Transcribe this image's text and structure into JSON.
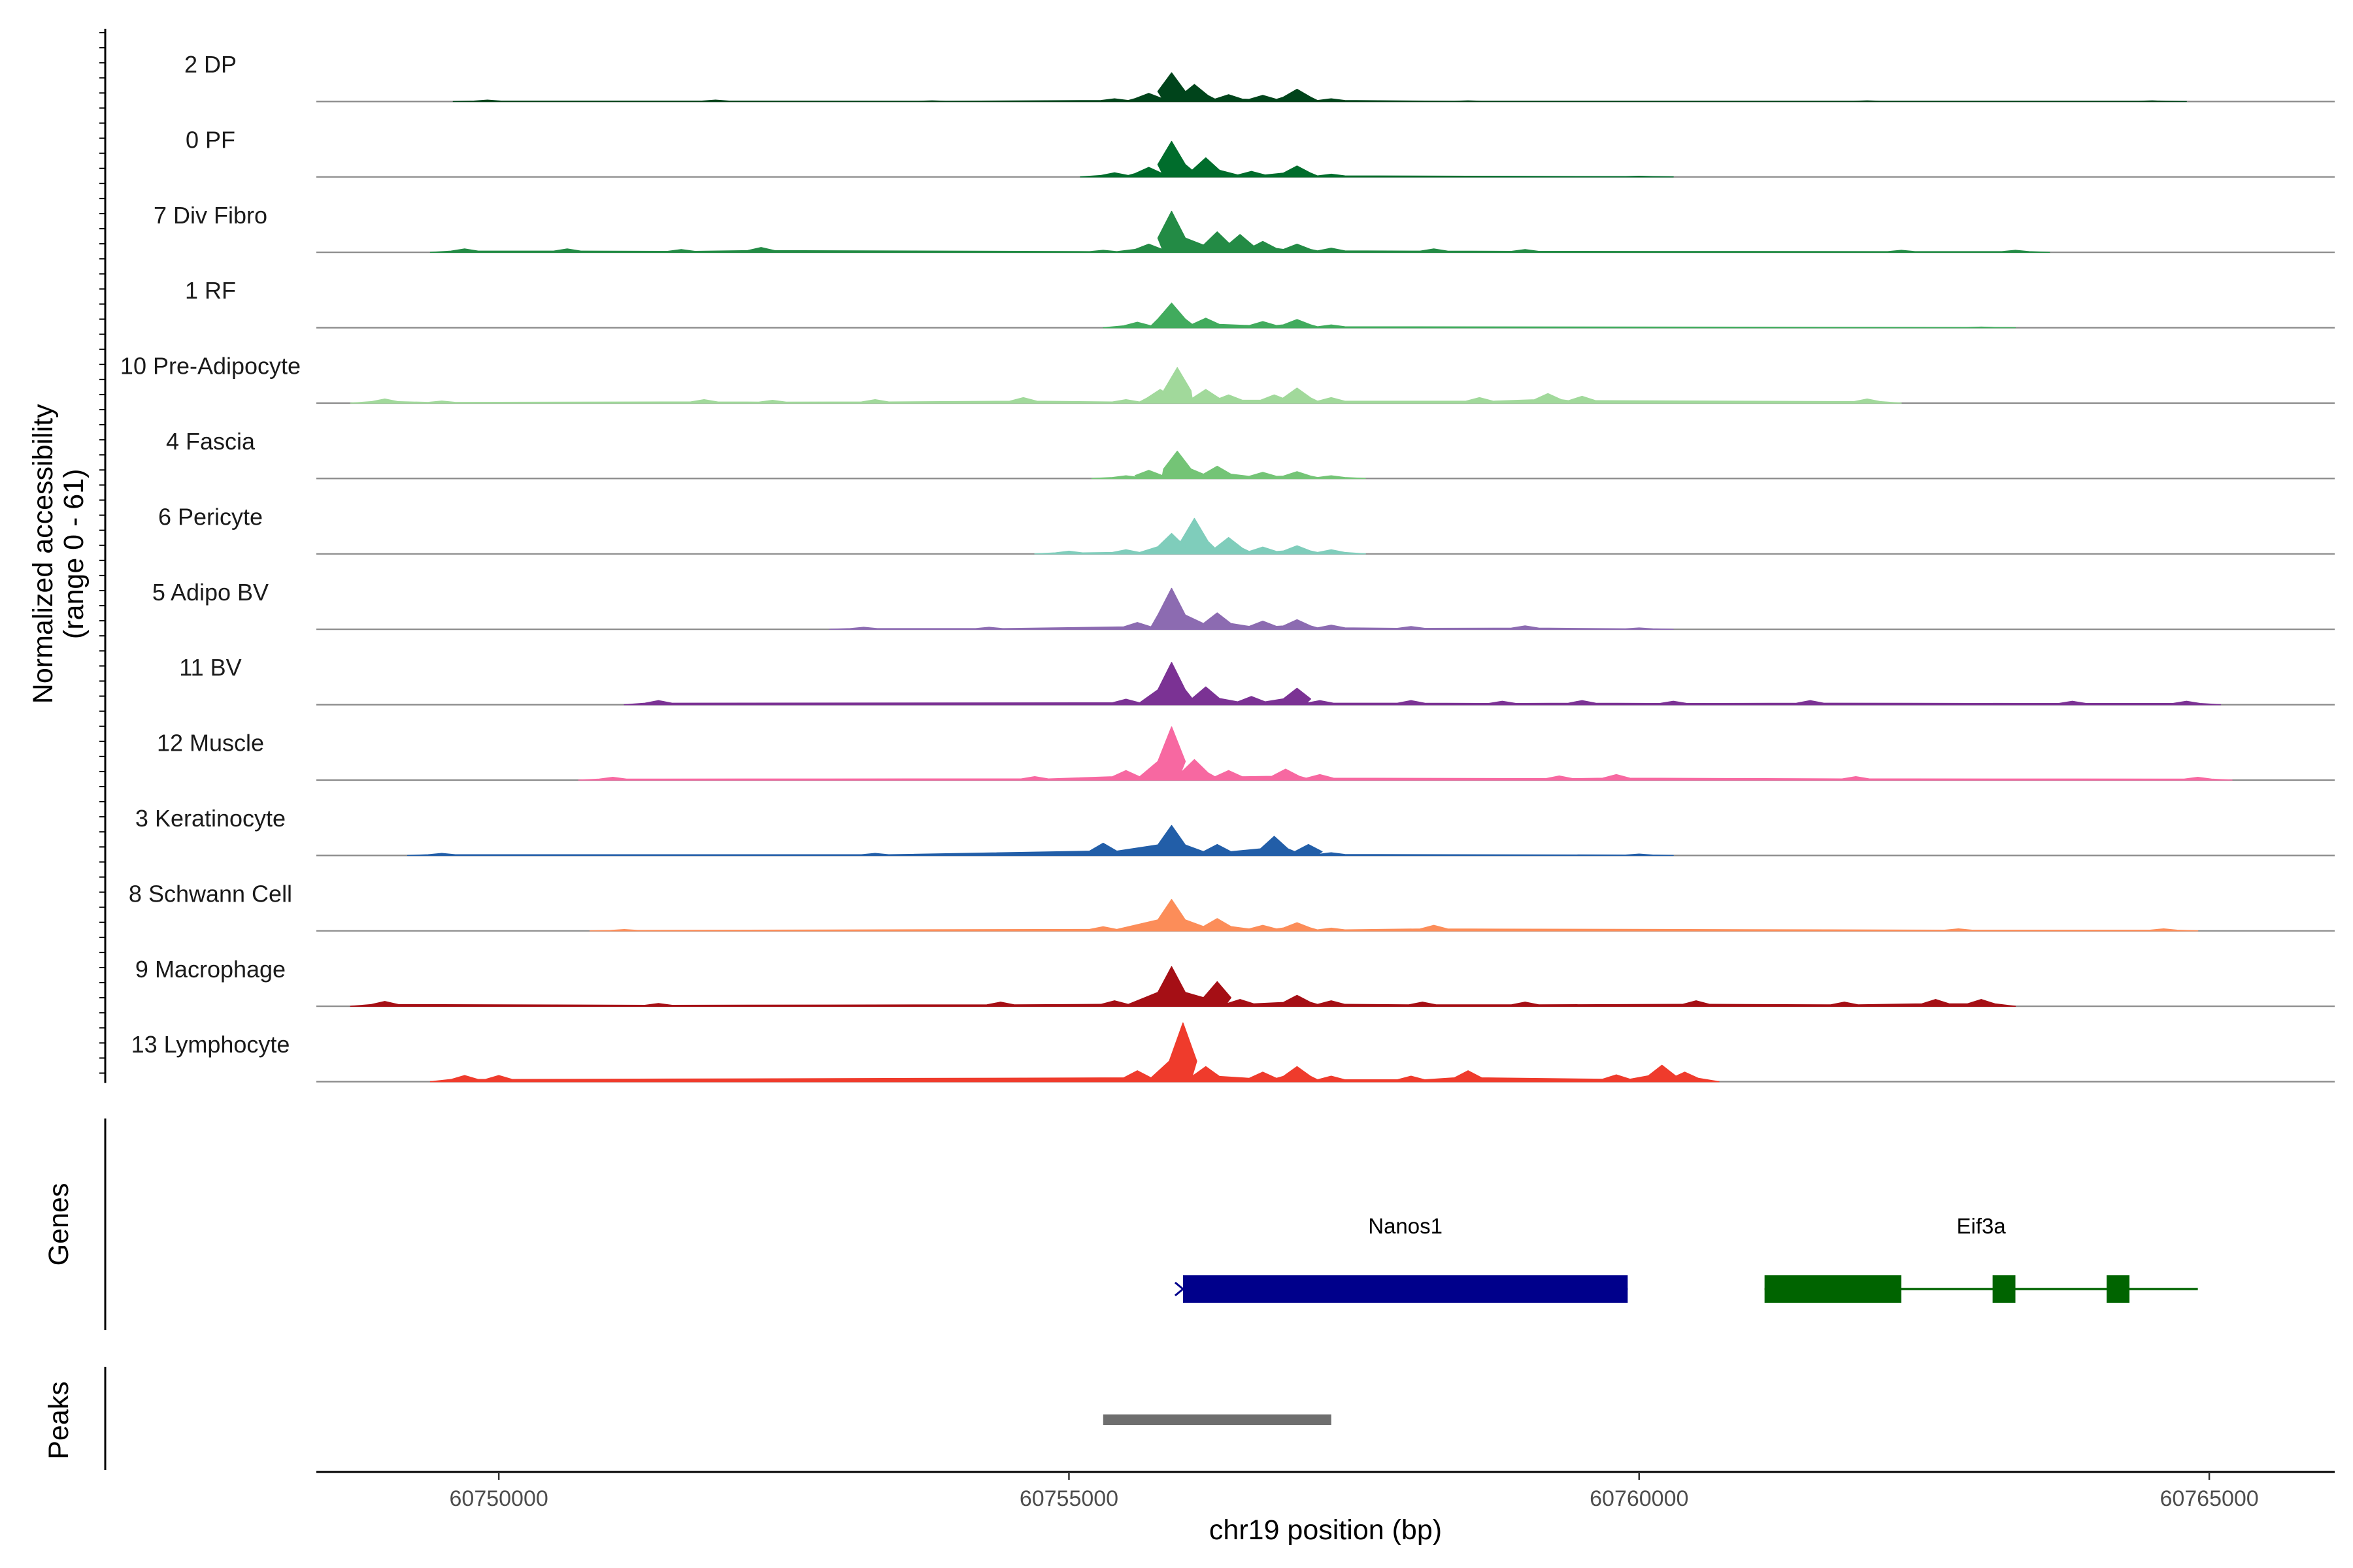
{
  "chart_data": {
    "type": "area",
    "chromosome": "chr19",
    "xlabel": "chr19 position (bp)",
    "ylabel": "Normalized accessibility",
    "ylabel_range": "(range 0 - 61)",
    "xlim": [
      60748400,
      60766100
    ],
    "ylim": [
      0,
      61
    ],
    "x_ticks": [
      60750000,
      60755000,
      60760000,
      60765000
    ],
    "x_tick_labels": [
      "60750000",
      "60755000",
      "60760000",
      "60765000"
    ],
    "series": [
      {
        "name": "2 DP",
        "color": "#00441b",
        "points": [
          [
            60749900,
            2
          ],
          [
            60751900,
            2
          ],
          [
            60753800,
            1
          ],
          [
            60755400,
            4
          ],
          [
            60755700,
            12
          ],
          [
            60755900,
            42
          ],
          [
            60756100,
            25
          ],
          [
            60756400,
            10
          ],
          [
            60756700,
            9
          ],
          [
            60757000,
            18
          ],
          [
            60757300,
            4
          ],
          [
            60758500,
            1
          ],
          [
            60762000,
            1
          ],
          [
            60764500,
            1
          ]
        ]
      },
      {
        "name": "0 PF",
        "color": "#006d2c",
        "points": [
          [
            60755400,
            6
          ],
          [
            60755700,
            14
          ],
          [
            60755900,
            52
          ],
          [
            60756200,
            28
          ],
          [
            60756600,
            8
          ],
          [
            60757000,
            16
          ],
          [
            60757300,
            4
          ],
          [
            60760000,
            1
          ]
        ]
      },
      {
        "name": "7 Div Fibro",
        "color": "#238b45",
        "points": [
          [
            60749700,
            5
          ],
          [
            60750600,
            5
          ],
          [
            60751600,
            4
          ],
          [
            60752300,
            7
          ],
          [
            60755300,
            3
          ],
          [
            60755700,
            12
          ],
          [
            60755900,
            60
          ],
          [
            60756300,
            30
          ],
          [
            60756500,
            26
          ],
          [
            60756700,
            16
          ],
          [
            60757000,
            12
          ],
          [
            60757300,
            6
          ],
          [
            60758200,
            5
          ],
          [
            60759000,
            4
          ],
          [
            60762300,
            3
          ],
          [
            60763300,
            3
          ]
        ]
      },
      {
        "name": "1 RF",
        "color": "#41ab5d",
        "points": [
          [
            60755600,
            8
          ],
          [
            60755900,
            36
          ],
          [
            60756200,
            14
          ],
          [
            60756700,
            9
          ],
          [
            60757000,
            12
          ],
          [
            60757300,
            4
          ],
          [
            60763000,
            1
          ]
        ]
      },
      {
        "name": "10 Pre-Adipocyte",
        "color": "#a1d99b",
        "points": [
          [
            60749000,
            6
          ],
          [
            60749500,
            3
          ],
          [
            60751800,
            5
          ],
          [
            60752400,
            4
          ],
          [
            60753300,
            5
          ],
          [
            60754600,
            8
          ],
          [
            60755500,
            5
          ],
          [
            60755800,
            20
          ],
          [
            60755950,
            52
          ],
          [
            60756200,
            20
          ],
          [
            60756400,
            12
          ],
          [
            60756800,
            12
          ],
          [
            60757000,
            22
          ],
          [
            60757300,
            8
          ],
          [
            60758600,
            8
          ],
          [
            60759200,
            14
          ],
          [
            60759500,
            10
          ],
          [
            60762000,
            6
          ]
        ]
      },
      {
        "name": "4 Fascia",
        "color": "#74c476",
        "points": [
          [
            60755500,
            4
          ],
          [
            60755700,
            12
          ],
          [
            60755950,
            40
          ],
          [
            60756300,
            18
          ],
          [
            60756700,
            9
          ],
          [
            60757000,
            10
          ],
          [
            60757300,
            4
          ]
        ]
      },
      {
        "name": "6 Pericyte",
        "color": "#7fcdbb",
        "points": [
          [
            60755000,
            4
          ],
          [
            60755500,
            6
          ],
          [
            60755900,
            30
          ],
          [
            60756100,
            52
          ],
          [
            60756400,
            24
          ],
          [
            60756700,
            10
          ],
          [
            60757000,
            12
          ],
          [
            60757300,
            6
          ]
        ]
      },
      {
        "name": "5 Adipo BV",
        "color": "#8c6bb1",
        "points": [
          [
            60753200,
            3
          ],
          [
            60754300,
            3
          ],
          [
            60755600,
            10
          ],
          [
            60755900,
            60
          ],
          [
            60756300,
            24
          ],
          [
            60756700,
            12
          ],
          [
            60757000,
            14
          ],
          [
            60757300,
            6
          ],
          [
            60758000,
            4
          ],
          [
            60759000,
            5
          ],
          [
            60760000,
            2
          ]
        ]
      },
      {
        "name": "11 BV",
        "color": "#7b3294",
        "points": [
          [
            60751400,
            6
          ],
          [
            60755500,
            8
          ],
          [
            60755900,
            62
          ],
          [
            60756200,
            26
          ],
          [
            60756600,
            12
          ],
          [
            60757000,
            24
          ],
          [
            60757200,
            6
          ],
          [
            60758000,
            6
          ],
          [
            60758800,
            5
          ],
          [
            60759500,
            6
          ],
          [
            60760300,
            5
          ],
          [
            60761500,
            6
          ],
          [
            60763800,
            5
          ],
          [
            60764800,
            5
          ]
        ]
      },
      {
        "name": "12 Muscle",
        "color": "#f768a1",
        "points": [
          [
            60751000,
            4
          ],
          [
            60754700,
            5
          ],
          [
            60755500,
            14
          ],
          [
            60755900,
            78
          ],
          [
            60756100,
            30
          ],
          [
            60756400,
            14
          ],
          [
            60756900,
            16
          ],
          [
            60757200,
            8
          ],
          [
            60759300,
            6
          ],
          [
            60759800,
            8
          ],
          [
            60761900,
            5
          ],
          [
            60764900,
            4
          ]
        ]
      },
      {
        "name": "3 Keratinocyte",
        "color": "#225ea8",
        "points": [
          [
            60749500,
            3
          ],
          [
            60753300,
            3
          ],
          [
            60755300,
            18
          ],
          [
            60755900,
            44
          ],
          [
            60756300,
            16
          ],
          [
            60756800,
            28
          ],
          [
            60757100,
            16
          ],
          [
            60757300,
            4
          ],
          [
            60760000,
            2
          ]
        ]
      },
      {
        "name": "8 Schwann Cell",
        "color": "#fc8d59",
        "points": [
          [
            60751100,
            2
          ],
          [
            60755300,
            6
          ],
          [
            60755900,
            46
          ],
          [
            60756300,
            18
          ],
          [
            60756700,
            8
          ],
          [
            60757000,
            12
          ],
          [
            60757300,
            4
          ],
          [
            60758200,
            8
          ],
          [
            60762800,
            3
          ],
          [
            60764600,
            3
          ]
        ]
      },
      {
        "name": "9 Macrophage",
        "color": "#a50f15",
        "points": [
          [
            60749000,
            7
          ],
          [
            60751400,
            4
          ],
          [
            60754400,
            6
          ],
          [
            60755400,
            8
          ],
          [
            60755900,
            58
          ],
          [
            60756300,
            36
          ],
          [
            60756500,
            10
          ],
          [
            60757000,
            16
          ],
          [
            60757300,
            8
          ],
          [
            60758100,
            6
          ],
          [
            60759000,
            6
          ],
          [
            60760500,
            8
          ],
          [
            60761800,
            6
          ],
          [
            60762600,
            10
          ],
          [
            60763000,
            10
          ]
        ]
      },
      {
        "name": "13 Lymphocyte",
        "color": "#ef3b2c",
        "points": [
          [
            60749700,
            9
          ],
          [
            60750000,
            9
          ],
          [
            60755600,
            16
          ],
          [
            60756000,
            86
          ],
          [
            60756200,
            22
          ],
          [
            60756700,
            14
          ],
          [
            60757000,
            22
          ],
          [
            60757300,
            8
          ],
          [
            60758000,
            8
          ],
          [
            60758500,
            16
          ],
          [
            60759800,
            10
          ],
          [
            60760200,
            24
          ],
          [
            60760400,
            14
          ]
        ]
      }
    ],
    "genes_track_label": "Genes",
    "genes": [
      {
        "name": "Nanos1",
        "color": "#00008b",
        "start": 60756000,
        "end": 60759900,
        "strand": "+",
        "exons": [
          [
            60756000,
            60759900
          ]
        ]
      },
      {
        "name": "Eif3a",
        "color": "#006400",
        "start": 60761100,
        "end": 60764900,
        "strand": "-",
        "exons": [
          [
            60761100,
            60762300
          ],
          [
            60763100,
            60763300
          ],
          [
            60764100,
            60764300
          ]
        ]
      }
    ],
    "peaks_track_label": "Peaks",
    "peaks": [
      {
        "start": 60755300,
        "end": 60757300,
        "color": "#6e6e6e"
      }
    ]
  }
}
